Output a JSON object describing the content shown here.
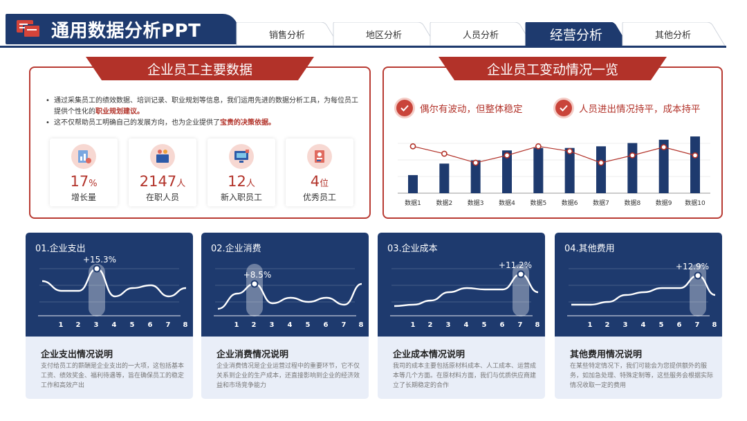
{
  "header": {
    "title": "通用数据分析PPT",
    "tabs": [
      {
        "label": "销售分析",
        "active": false
      },
      {
        "label": "地区分析",
        "active": false
      },
      {
        "label": "人员分析",
        "active": false
      },
      {
        "label": "经营分析",
        "active": true
      },
      {
        "label": "其他分析",
        "active": false
      }
    ]
  },
  "colors": {
    "navy": "#1e3a6e",
    "red": "#b23229",
    "card_bg": "#e9eef8"
  },
  "panel_left": {
    "title": "企业员工主要数据",
    "bullet1_a": "通过采集员工的绩效数据、培训记录、职业规划等信息，我们运用先进的数据分析工具，为每位员工提供个性化的",
    "bullet1_b": "职业规划建议。",
    "bullet2_a": "这不仅帮助员工明确自己的发展方向，也为企业提供了",
    "bullet2_b": "宝贵的决策依据。",
    "kpis": [
      {
        "icon": "growth-chart-icon",
        "value": "17",
        "unit": "%",
        "label": "增长量"
      },
      {
        "icon": "team-people-icon",
        "value": "2147",
        "unit": "人",
        "label": "在职人员"
      },
      {
        "icon": "new-staff-computer-icon",
        "value": "12",
        "unit": "人",
        "label": "新入职员工"
      },
      {
        "icon": "excellent-staff-icon",
        "value": "4",
        "unit": "位",
        "label": "优秀员工"
      }
    ]
  },
  "panel_right": {
    "title": "企业员工变动情况一览",
    "check1": "偶尔有波动，但整体稳定",
    "check2": "人员进出情况持平，成本持平"
  },
  "chart_data": [
    {
      "type": "bar",
      "categories": [
        "数据1",
        "数据2",
        "数据3",
        "数据4",
        "数据5",
        "数据6",
        "数据7",
        "数据8",
        "数据9",
        "数据10"
      ],
      "series": [
        {
          "values": [
            22,
            36,
            40,
            52,
            55,
            55,
            57,
            61,
            65,
            69
          ]
        },
        {
          "values": [
            57,
            48,
            37,
            46,
            57,
            51,
            37,
            46,
            56,
            46
          ]
        }
      ],
      "ylim": [
        0,
        80
      ]
    }
  ],
  "cards": [
    {
      "title": "01.企业支出",
      "pct": "+15.3%",
      "highlight": 3,
      "x": [
        "1",
        "2",
        "3",
        "4",
        "5",
        "6",
        "7",
        "8"
      ],
      "foot_title": "企业支出情况说明",
      "foot_desc": "支付给员工的薪酬是企业支出的一大项，这包括基本工资、绩效奖金、福利待遇等，旨在确保员工的稳定工作和高效产出"
    },
    {
      "title": "02.企业消费",
      "pct": "+8.5%",
      "highlight": 2,
      "x": [
        "1",
        "2",
        "3",
        "4",
        "5",
        "6",
        "7",
        "8"
      ],
      "foot_title": "企业消费情况说明",
      "foot_desc": "企业消费情况是企业运营过程中的重要环节，它不仅关系到企业的生产成本，还直接影响到企业的经济效益和市场竞争能力"
    },
    {
      "title": "03.企业成本",
      "pct": "+11.2%",
      "highlight": 7,
      "x": [
        "1",
        "2",
        "3",
        "4",
        "5",
        "6",
        "7",
        "8"
      ],
      "foot_title": "企业成本情况说明",
      "foot_desc": "我司的成本主要包括原材料成本、人工成本、运营成本等几个方面。在原材料方面，我们与优质供应商建立了长期稳定的合作"
    },
    {
      "title": "04.其他费用",
      "pct": "+12.9%",
      "highlight": 7,
      "x": [
        "1",
        "2",
        "3",
        "4",
        "5",
        "6",
        "7",
        "8"
      ],
      "foot_title": "其他费用情况说明",
      "foot_desc": "在某些特定情况下，我们可能会为您提供额外的服务，如加急处理、特殊定制等，这些服务会根据实际情况收取一定的费用"
    }
  ]
}
